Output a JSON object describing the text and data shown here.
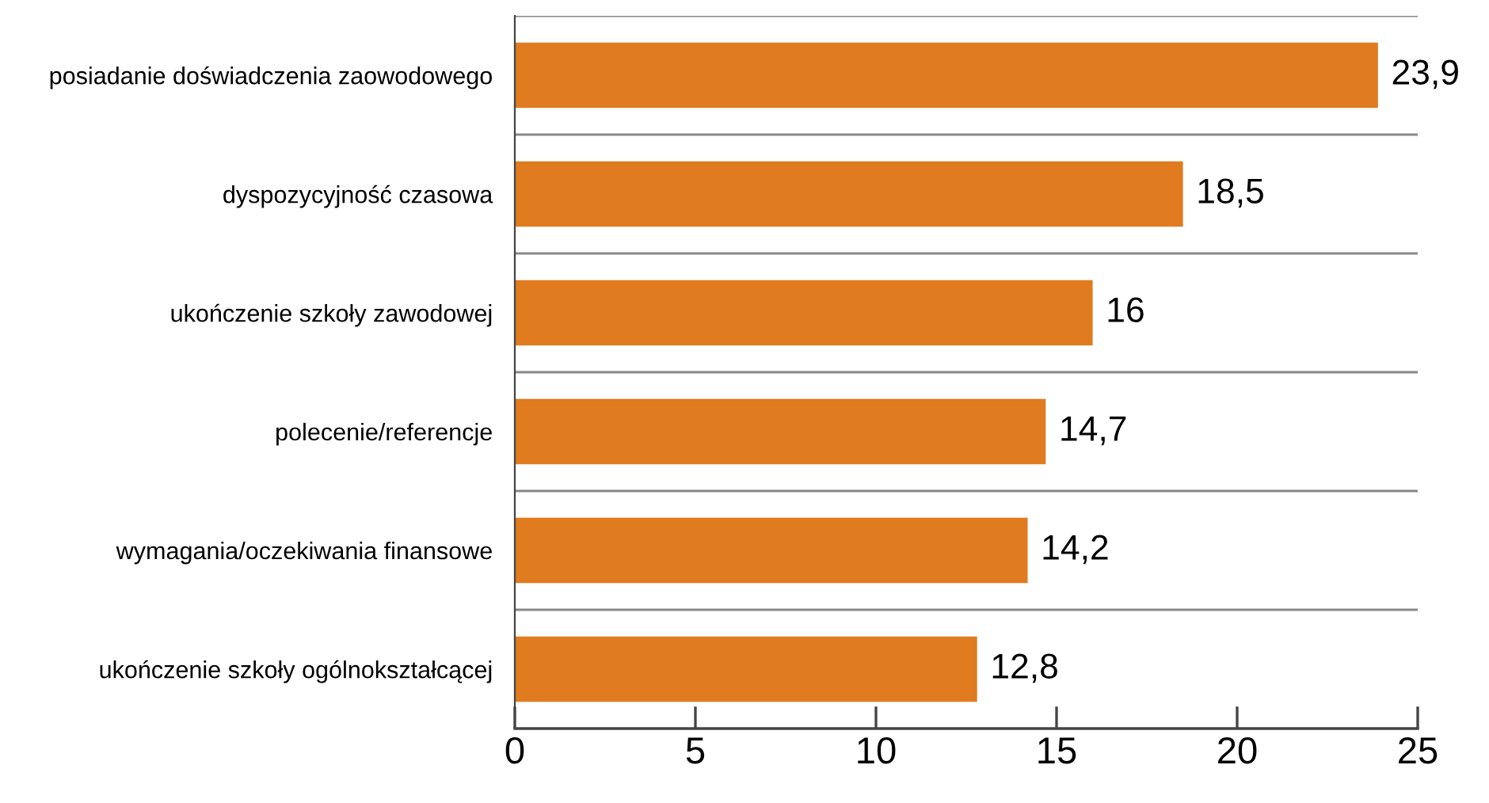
{
  "chart_data": {
    "type": "bar",
    "orientation": "horizontal",
    "categories": [
      "posiadanie doświadczenia zaowodowego",
      "dyspozycyjność czasowa",
      "ukończenie szkoły zawodowej",
      "polecenie/referencje",
      "wymagania/oczekiwania finansowe",
      "ukończenie szkoły ogólnokształcącej"
    ],
    "values": [
      23.9,
      18.5,
      16,
      14.7,
      14.2,
      12.8
    ],
    "value_labels": [
      "23,9",
      "18,5",
      "16",
      "14,7",
      "14,2",
      "12,8"
    ],
    "color": "#e07b1f",
    "xlim": [
      0,
      25
    ],
    "xticks": [
      0,
      5,
      10,
      15,
      20,
      25
    ],
    "grid": "y"
  }
}
